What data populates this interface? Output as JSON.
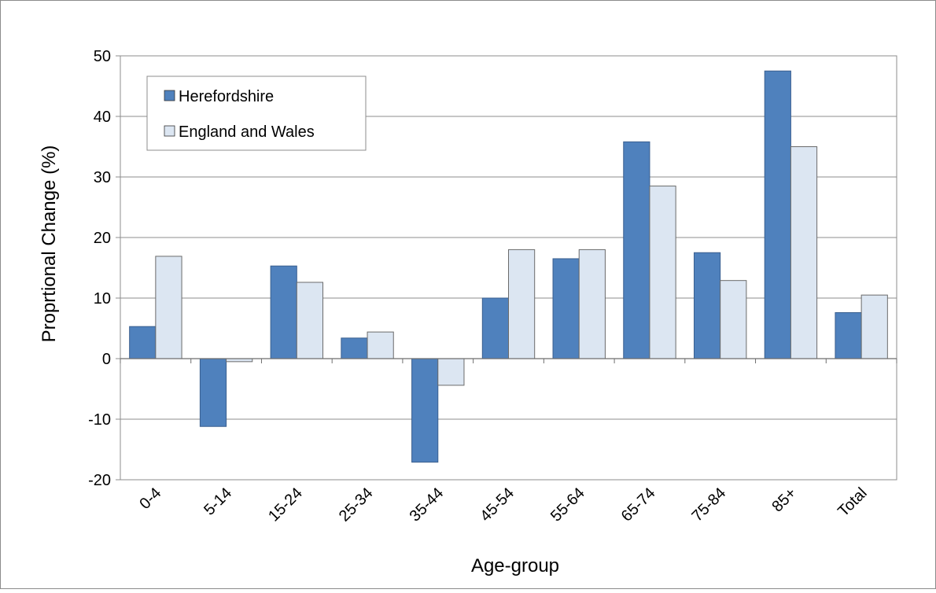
{
  "chart_data": {
    "type": "bar",
    "title": "",
    "xlabel": "Age-group",
    "ylabel": "Proprtional Change (%)",
    "categories": [
      "0-4",
      "5-14",
      "15-24",
      "25-34",
      "35-44",
      "45-54",
      "55-64",
      "65-74",
      "75-84",
      "85+",
      "Total"
    ],
    "series": [
      {
        "name": "Herefordshire",
        "color": "#4f81bd",
        "values": [
          5.3,
          -11.2,
          15.3,
          3.4,
          -17.1,
          10.0,
          16.5,
          35.8,
          17.5,
          47.5,
          7.6
        ]
      },
      {
        "name": "England and Wales",
        "color": "#dce6f2",
        "values": [
          16.9,
          -0.5,
          12.6,
          4.4,
          -4.4,
          18.0,
          18.0,
          28.5,
          12.9,
          35.0,
          10.5
        ]
      }
    ],
    "ylim": [
      -20,
      50
    ],
    "yticks": [
      -20,
      -10,
      0,
      10,
      20,
      30,
      40,
      50
    ],
    "grid": true,
    "legend_position": "top-left"
  }
}
